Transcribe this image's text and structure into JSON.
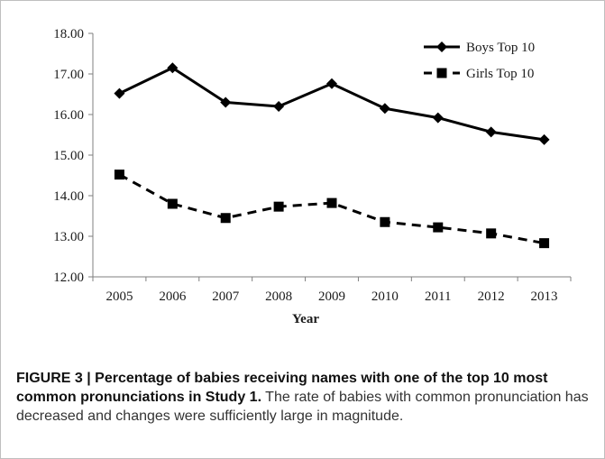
{
  "chart_data": {
    "type": "line",
    "title": "",
    "xlabel": "Year",
    "ylabel": "",
    "categories": [
      "2005",
      "2006",
      "2007",
      "2008",
      "2009",
      "2010",
      "2011",
      "2012",
      "2013"
    ],
    "ylim": [
      12.0,
      18.0
    ],
    "yticks": [
      "12.00",
      "13.00",
      "14.00",
      "15.00",
      "16.00",
      "17.00",
      "18.00"
    ],
    "grid": false,
    "legend_position": "top-right",
    "series": [
      {
        "name": "Boys Top 10",
        "values": [
          16.52,
          17.15,
          16.3,
          16.2,
          16.76,
          16.15,
          15.92,
          15.57,
          15.38
        ],
        "style": "solid",
        "marker": "diamond",
        "color": "#000000"
      },
      {
        "name": "Girls Top 10",
        "values": [
          14.52,
          13.8,
          13.45,
          13.73,
          13.82,
          13.35,
          13.22,
          13.07,
          12.83
        ],
        "style": "dashed",
        "marker": "square",
        "color": "#000000"
      }
    ]
  },
  "caption": {
    "title": "FIGURE 3 | Percentage of babies receiving names with one of the top 10 most common pronunciations in Study 1.",
    "body": " The rate of babies with common pronunciation has decreased and changes were sufficiently large in magnitude."
  }
}
